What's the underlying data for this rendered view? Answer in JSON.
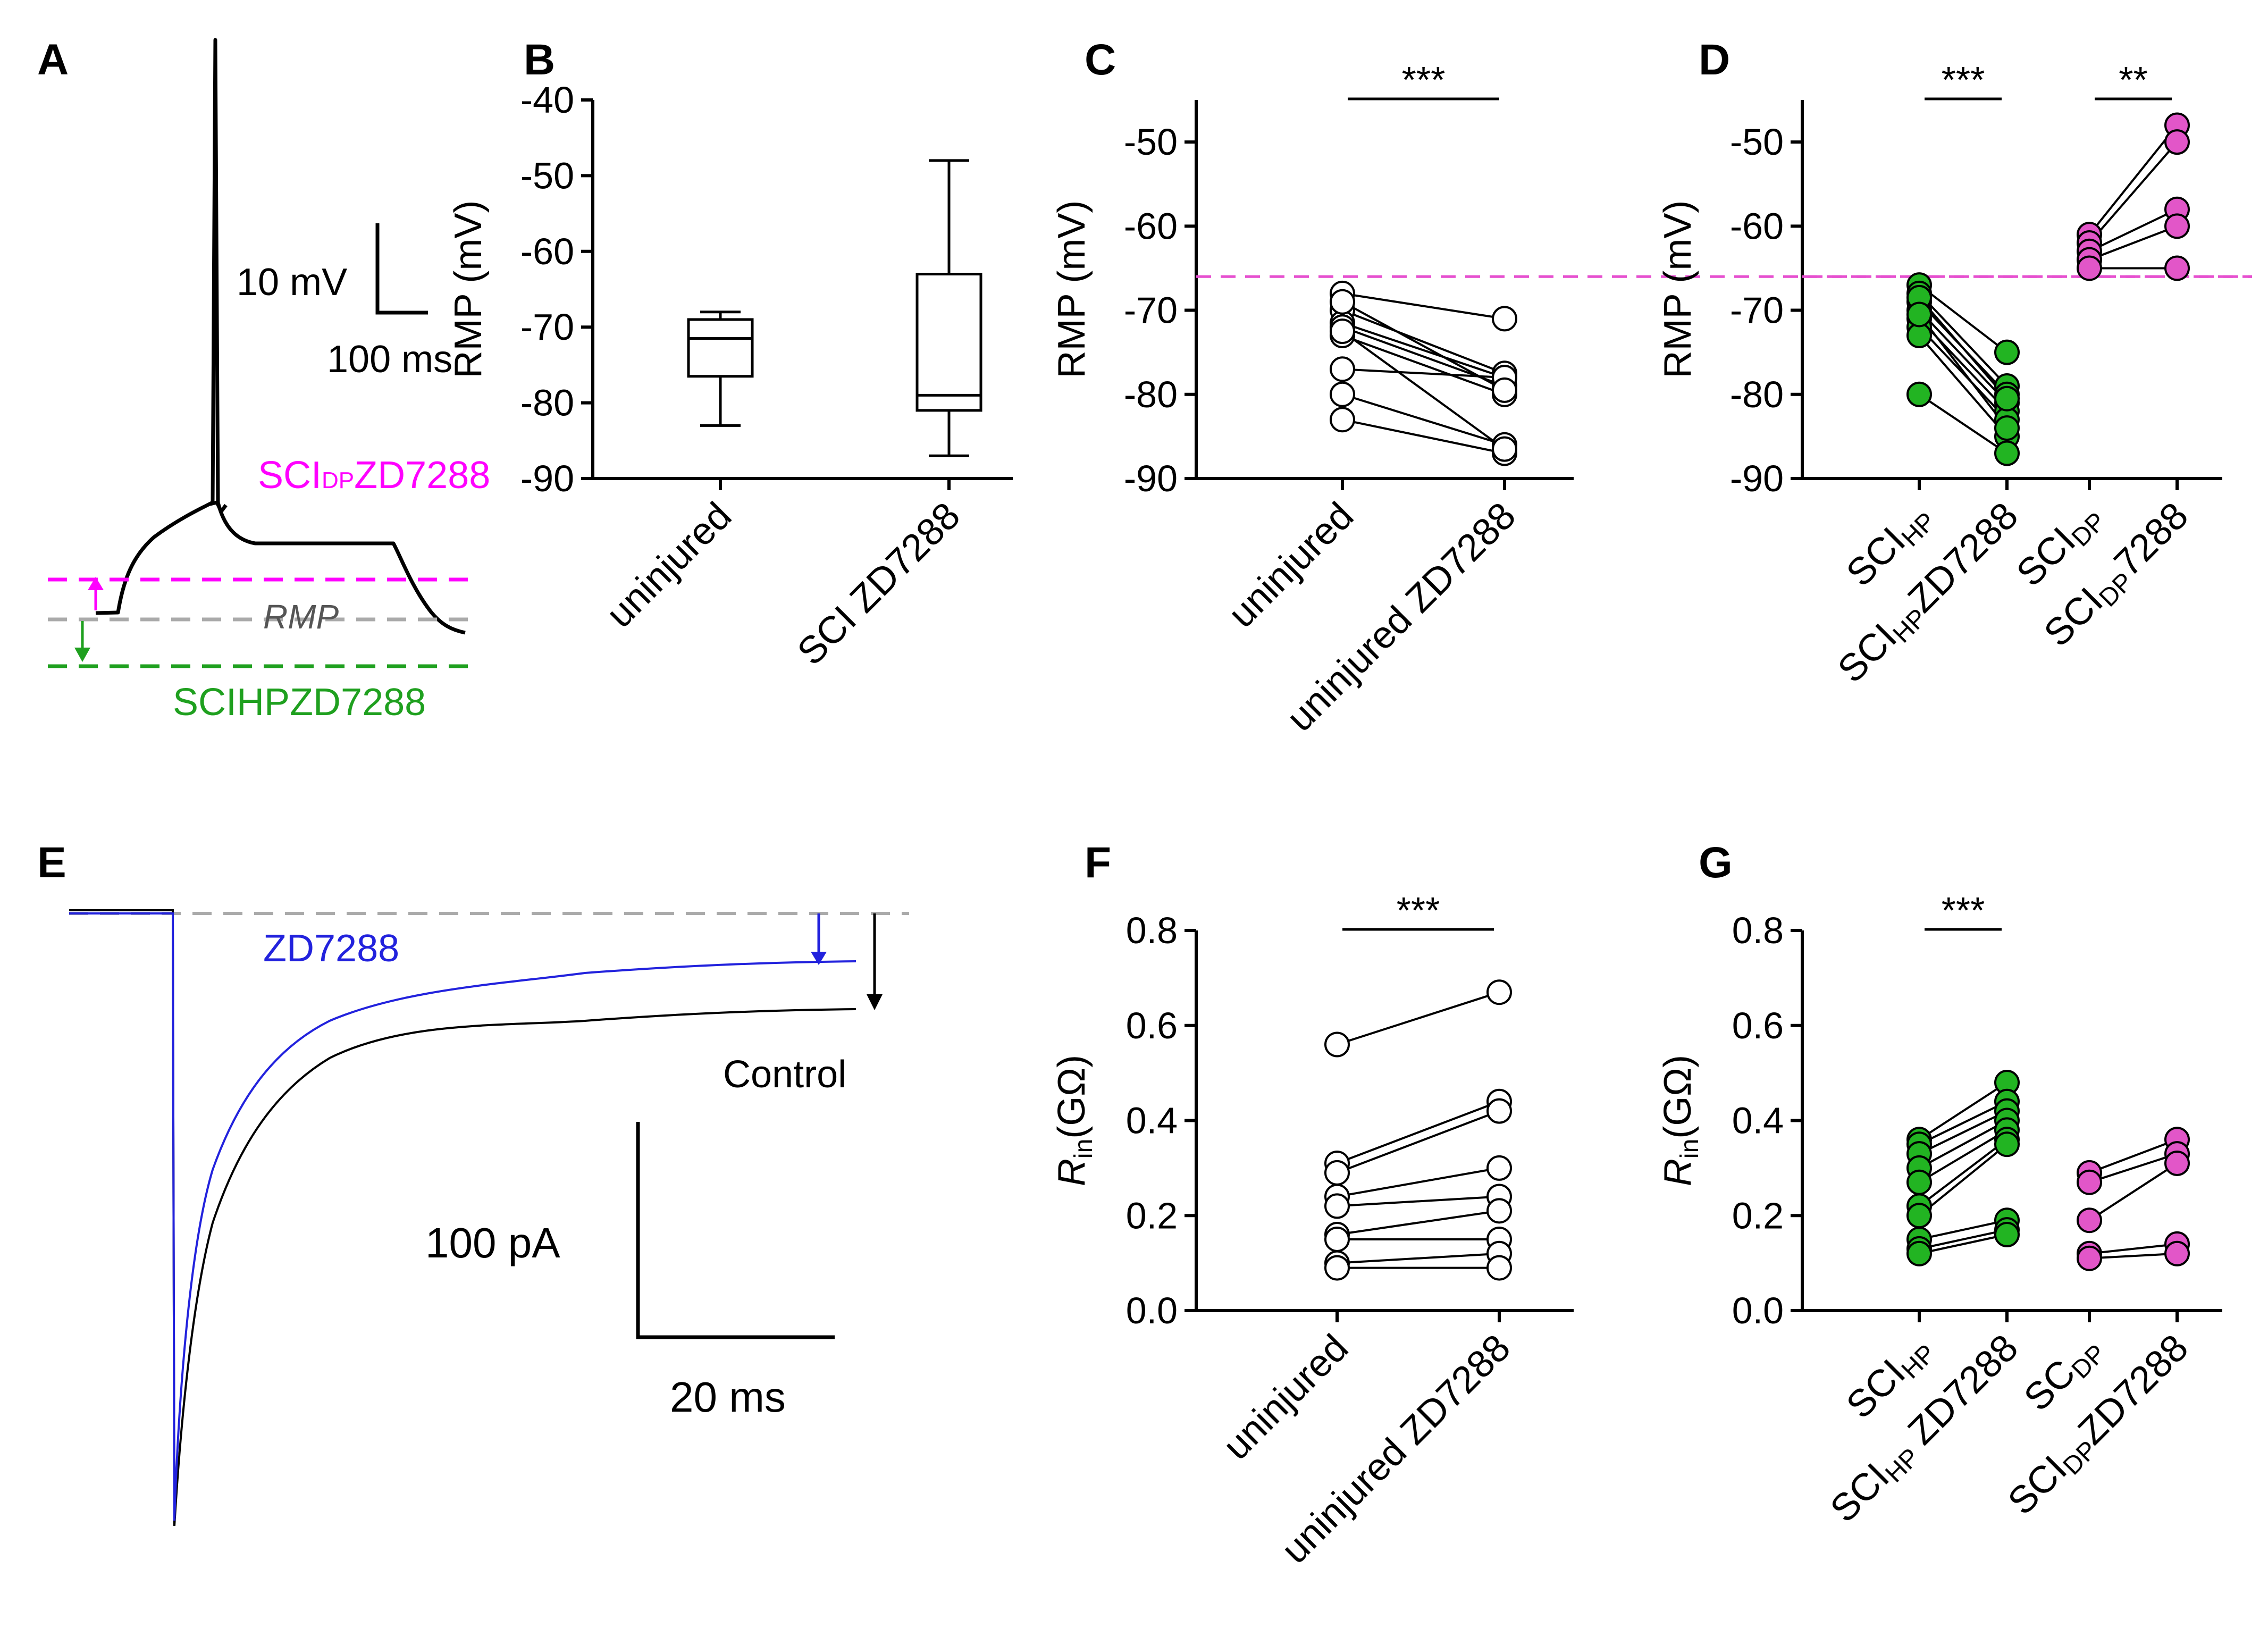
{
  "colors": {
    "black": "#000000",
    "magenta": "#ff00ff",
    "pink_marker": "#e256c8",
    "green": "#1fa01f",
    "green_marker": "#22b422",
    "gray": "#aaaaaa",
    "blue": "#2222dd",
    "dashed_ref": "#e64fcf"
  },
  "panel_letters": [
    "A",
    "B",
    "C",
    "D",
    "E",
    "F",
    "G"
  ],
  "panelA": {
    "scale_v": "10 mV",
    "scale_t": "100 ms",
    "label_dp": "SCI",
    "label_dp_sub": "DP",
    "label_dp_suffix": "ZD7288",
    "label_rmp": "RMP",
    "label_hp": "SCIHPZD7288"
  },
  "panelE": {
    "label_zd": "ZD7288",
    "label_control": "Control",
    "scale_i": "100 pA",
    "scale_t": "20 ms"
  },
  "chart_data": [
    {
      "panel": "B",
      "type": "box",
      "ylabel": "RMP (mV)",
      "ylim": [
        -90,
        -40
      ],
      "yticks": [
        "-40",
        "-50",
        "-60",
        "-70",
        "-80",
        "-90"
      ],
      "categories": [
        "uninjured",
        "SCI ZD7288"
      ],
      "boxes": [
        {
          "min": -83,
          "q1": -76.5,
          "median": -71.5,
          "q3": -69,
          "max": -68
        },
        {
          "min": -87,
          "q1": -81,
          "median": -79,
          "q3": -63,
          "max": -48
        }
      ]
    },
    {
      "panel": "C",
      "type": "paired",
      "ylabel": "RMP (mV)",
      "ylim": [
        -90,
        -45
      ],
      "yticks": [
        "-50",
        "-60",
        "-70",
        "-80",
        "-90"
      ],
      "categories": [
        "uninjured",
        "uninjured ZD7288"
      ],
      "reference_line": -66,
      "significance": [
        {
          "from": 0,
          "to": 1,
          "label": "***"
        }
      ],
      "pairs": [
        [
          -68,
          -71
        ],
        [
          -70,
          -77.5
        ],
        [
          -71.5,
          -78
        ],
        [
          -72,
          -79
        ],
        [
          -73,
          -80
        ],
        [
          -77,
          -78
        ],
        [
          -80,
          -86
        ],
        [
          -83,
          -87
        ],
        [
          -69,
          -79.5
        ],
        [
          -72.5,
          -86.5
        ]
      ]
    },
    {
      "panel": "D",
      "type": "paired",
      "ylabel": "RMP (mV)",
      "ylim": [
        -90,
        -45
      ],
      "yticks": [
        "-50",
        "-60",
        "-70",
        "-80",
        "-90"
      ],
      "categories": [
        {
          "main": "SCI",
          "sub": "HP",
          "suffix": ""
        },
        {
          "main": "SCI",
          "sub": "HP",
          "suffix": "ZD7288"
        },
        {
          "main": "SCI",
          "sub": "DP",
          "suffix": ""
        },
        {
          "main": "SCI",
          "sub": "DP",
          "suffix": "7288"
        }
      ],
      "reference_line": -66,
      "significance": [
        {
          "from": 0,
          "to": 1,
          "label": "***"
        },
        {
          "from": 2,
          "to": 3,
          "label": "**"
        }
      ],
      "groups": [
        {
          "color_key": "green_marker",
          "pairs": [
            [
              -67,
              -75
            ],
            [
              -68,
              -79
            ],
            [
              -69,
              -80
            ],
            [
              -70,
              -81
            ],
            [
              -71,
              -82
            ],
            [
              -72,
              -83
            ],
            [
              -73,
              -85
            ],
            [
              -80,
              -87
            ],
            [
              -68.5,
              -80.5
            ],
            [
              -70.5,
              -84
            ]
          ]
        },
        {
          "color_key": "pink_marker",
          "pairs": [
            [
              -61,
              -48
            ],
            [
              -62,
              -50
            ],
            [
              -63,
              -58
            ],
            [
              -64,
              -60
            ],
            [
              -65,
              -65
            ]
          ]
        }
      ]
    },
    {
      "panel": "F",
      "type": "paired",
      "ylabel": "R",
      "ylabel_sub": "in",
      "ylabel_unit": "(GΩ)",
      "ylim": [
        0,
        0.8
      ],
      "yticks": [
        "0.0",
        "0.2",
        "0.4",
        "0.6",
        "0.8"
      ],
      "categories": [
        "uninjured",
        "uninjured ZD7288"
      ],
      "significance": [
        {
          "from": 0,
          "to": 1,
          "label": "***"
        }
      ],
      "pairs": [
        [
          0.56,
          0.67
        ],
        [
          0.31,
          0.44
        ],
        [
          0.29,
          0.42
        ],
        [
          0.24,
          0.3
        ],
        [
          0.22,
          0.24
        ],
        [
          0.16,
          0.21
        ],
        [
          0.15,
          0.15
        ],
        [
          0.1,
          0.12
        ],
        [
          0.09,
          0.09
        ]
      ]
    },
    {
      "panel": "G",
      "type": "paired",
      "ylabel": "R",
      "ylabel_sub": "in",
      "ylabel_unit": "(GΩ)",
      "ylim": [
        0,
        0.8
      ],
      "yticks": [
        "0.0",
        "0.2",
        "0.4",
        "0.6",
        "0.8"
      ],
      "categories": [
        {
          "main": "SCI",
          "sub": "HP",
          "suffix": ""
        },
        {
          "main": "SCI",
          "sub": "HP",
          "suffix": " ZD7288"
        },
        {
          "main": "SC",
          "sub": "DP",
          "suffix": ""
        },
        {
          "main": "SCI",
          "sub": "DP",
          "suffix": "ZD7288"
        }
      ],
      "significance": [
        {
          "from": 0,
          "to": 1,
          "label": "***"
        }
      ],
      "groups": [
        {
          "color_key": "green_marker",
          "pairs": [
            [
              0.36,
              0.48
            ],
            [
              0.35,
              0.44
            ],
            [
              0.33,
              0.42
            ],
            [
              0.3,
              0.4
            ],
            [
              0.27,
              0.38
            ],
            [
              0.22,
              0.36
            ],
            [
              0.2,
              0.35
            ],
            [
              0.15,
              0.19
            ],
            [
              0.13,
              0.17
            ],
            [
              0.12,
              0.16
            ]
          ]
        },
        {
          "color_key": "pink_marker",
          "pairs": [
            [
              0.29,
              0.36
            ],
            [
              0.27,
              0.33
            ],
            [
              0.19,
              0.31
            ],
            [
              0.12,
              0.14
            ],
            [
              0.11,
              0.12
            ]
          ]
        }
      ]
    }
  ]
}
